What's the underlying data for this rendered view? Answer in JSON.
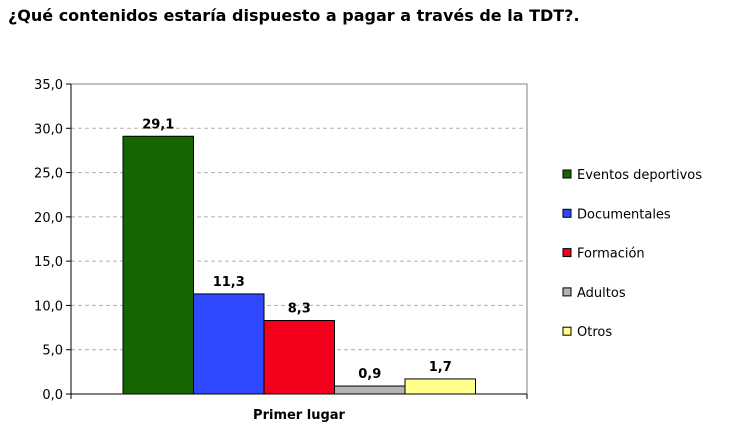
{
  "chart_data": {
    "type": "bar",
    "title": "¿Qué contenidos estaría dispuesto a pagar a través de la TDT?.",
    "categories": [
      "Primer lugar"
    ],
    "series": [
      {
        "name": "Eventos deportivos",
        "values": [
          29.1
        ],
        "label": "29,1",
        "color": "#156600"
      },
      {
        "name": "Documentales",
        "values": [
          11.3
        ],
        "label": "11,3",
        "color": "#3049FF"
      },
      {
        "name": "Formación",
        "values": [
          8.3
        ],
        "label": "8,3",
        "color": "#F5001C"
      },
      {
        "name": "Adultos",
        "values": [
          0.9
        ],
        "label": "0,9",
        "color": "#B3B3B3"
      },
      {
        "name": "Otros",
        "values": [
          1.7
        ],
        "label": "1,7",
        "color": "#FFFF8A"
      }
    ],
    "ylim": [
      0,
      35
    ],
    "yticks": [
      "0,0",
      "5,0",
      "10,0",
      "15,0",
      "20,0",
      "25,0",
      "30,0",
      "35,0"
    ],
    "grid": true,
    "legend": "right"
  }
}
